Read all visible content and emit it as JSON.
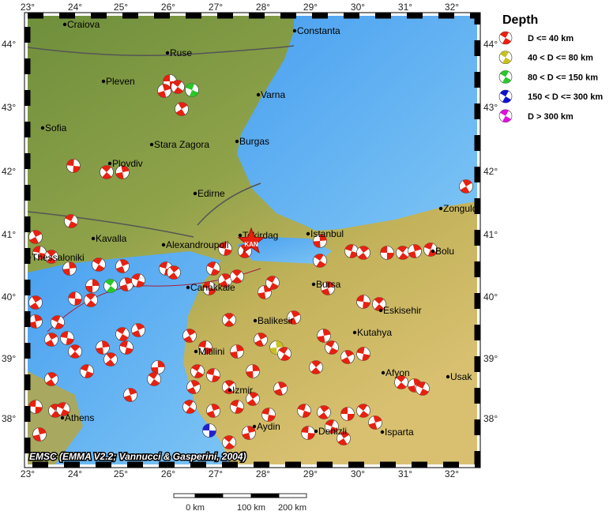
{
  "map": {
    "lon_labels": [
      "23°",
      "24°",
      "25°",
      "26°",
      "27°",
      "28°",
      "29°",
      "30°",
      "31°",
      "32°"
    ],
    "lat_labels": [
      "44°",
      "43°",
      "42°",
      "41°",
      "40°",
      "39°",
      "38°"
    ],
    "cities": [
      "Craiova",
      "Constanta",
      "Ruse",
      "Pleven",
      "Varna",
      "Sofia",
      "Stara Zagora",
      "Burgas",
      "Plovdiv",
      "Edirne",
      "Zonguldak",
      "Kavalla",
      "Alexandroupoli",
      "Tekirdag",
      "Istanbul",
      "Bolu",
      "Thessaloniki",
      "Canakkale",
      "Bursa",
      "Eskisehir",
      "Balikesir",
      "Kutahya",
      "Mitilini",
      "Izmir",
      "Afyon",
      "Usak",
      "Athens",
      "Aydin",
      "Denizli",
      "Isparta"
    ],
    "epicenter_label": "KAN",
    "caption": "EMSC (EMMA V2.2; Vannucci & Gasperini, 2004)"
  },
  "legend": {
    "title": "Depth",
    "items": [
      "D <= 40 km",
      "40 < D <= 80 km",
      "80 < D <= 150 km",
      "150 < D <= 300 km",
      "D > 300 km"
    ]
  },
  "scale_bar": {
    "labels": [
      "0 km",
      "100 km",
      "200 km"
    ]
  }
}
